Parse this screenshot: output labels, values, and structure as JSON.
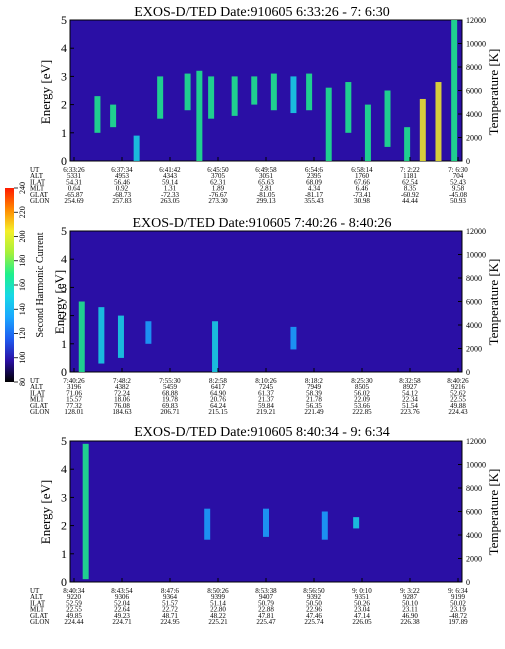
{
  "colors": {
    "background": "#2a0fa5",
    "colorbar_stops": [
      "#000000",
      "#2a0fa5",
      "#1e5cf0",
      "#1aa7ff",
      "#17d8e6",
      "#1ef08c",
      "#a6f03a",
      "#f5ef2a",
      "#ff8a00",
      "#ff1a00"
    ]
  },
  "colorbar": {
    "label": "Second Harmonic Current",
    "ticks": [
      "80",
      "100",
      "120",
      "140",
      "160",
      "180",
      "200",
      "220",
      "240"
    ]
  },
  "chart_data": [
    {
      "type": "heatmap",
      "title": "EXOS-D/TED   Date:910605   6:33:26 - 7: 6:30",
      "ylabel": "Energy [eV]",
      "y2label": "Temperature [K]",
      "ylim": [
        0,
        5
      ],
      "y2lim": [
        0,
        12000
      ],
      "yticks": [
        "0",
        "1",
        "2",
        "3",
        "4",
        "5"
      ],
      "y2ticks": [
        "0",
        "2000",
        "4000",
        "6000",
        "8000",
        "10000",
        "12000"
      ],
      "row_labels": [
        "UT",
        "ALT",
        "ILAT",
        "MLT",
        "GLAT",
        "GLON"
      ],
      "columns": [
        [
          "6:33:26",
          "5331",
          "54.31",
          "0.64",
          "-65.87",
          "254.69"
        ],
        [
          "6:37:34",
          "4953",
          "56.46",
          "0.92",
          "-68.73",
          "257.83"
        ],
        [
          "6:41:42",
          "4343",
          "59.14",
          "1.31",
          "-72.33",
          "263.05"
        ],
        [
          "6:45:50",
          "3705",
          "62.31",
          "1.89",
          "-76.67",
          "273.30"
        ],
        [
          "6:49:58",
          "3051",
          "65.63",
          "2.81",
          "-81.05",
          "299.13"
        ],
        [
          "6:54:6",
          "2395",
          "68.09",
          "4.34",
          "-81.17",
          "355.43"
        ],
        [
          "6:58:14",
          "1760",
          "67.66",
          "6.46",
          "-73.41",
          "30.98"
        ],
        [
          "7: 2:22",
          "1181",
          "62.54",
          "8.35",
          "-60.92",
          "44.44"
        ],
        [
          "7: 6:30",
          "704",
          "52.43",
          "9.58",
          "-45.08",
          "50.93"
        ]
      ],
      "features": [
        {
          "t": 0.07,
          "e0": 1.0,
          "e1": 2.3,
          "level": 0.55
        },
        {
          "t": 0.11,
          "e0": 1.2,
          "e1": 2.0,
          "level": 0.5
        },
        {
          "t": 0.17,
          "e0": 0.0,
          "e1": 0.9,
          "level": 0.45
        },
        {
          "t": 0.23,
          "e0": 1.5,
          "e1": 3.0,
          "level": 0.5
        },
        {
          "t": 0.3,
          "e0": 1.8,
          "e1": 3.1,
          "level": 0.55
        },
        {
          "t": 0.33,
          "e0": 0.0,
          "e1": 3.2,
          "level": 0.6
        },
        {
          "t": 0.36,
          "e0": 1.5,
          "e1": 3.0,
          "level": 0.55
        },
        {
          "t": 0.42,
          "e0": 1.6,
          "e1": 3.0,
          "level": 0.5
        },
        {
          "t": 0.47,
          "e0": 2.0,
          "e1": 3.0,
          "level": 0.5
        },
        {
          "t": 0.52,
          "e0": 1.8,
          "e1": 3.1,
          "level": 0.5
        },
        {
          "t": 0.57,
          "e0": 1.7,
          "e1": 3.0,
          "level": 0.45
        },
        {
          "t": 0.61,
          "e0": 1.8,
          "e1": 3.1,
          "level": 0.5
        },
        {
          "t": 0.66,
          "e0": 0.0,
          "e1": 2.6,
          "level": 0.5
        },
        {
          "t": 0.71,
          "e0": 1.0,
          "e1": 2.8,
          "level": 0.5
        },
        {
          "t": 0.76,
          "e0": 0.0,
          "e1": 2.0,
          "level": 0.55
        },
        {
          "t": 0.81,
          "e0": 0.5,
          "e1": 2.5,
          "level": 0.5
        },
        {
          "t": 0.86,
          "e0": 0.0,
          "e1": 1.2,
          "level": 0.6
        },
        {
          "t": 0.9,
          "e0": 0.0,
          "e1": 2.2,
          "level": 0.75
        },
        {
          "t": 0.94,
          "e0": 0.0,
          "e1": 2.8,
          "level": 0.8
        },
        {
          "t": 0.98,
          "e0": 0.0,
          "e1": 5.0,
          "level": 0.6
        }
      ]
    },
    {
      "type": "heatmap",
      "title": "EXOS-D/TED   Date:910605   7:40:26 - 8:40:26",
      "ylabel": "Energy [eV]",
      "y2label": "Temperature [K]",
      "ylim": [
        0,
        5
      ],
      "y2lim": [
        0,
        12000
      ],
      "yticks": [
        "0",
        "1",
        "2",
        "3",
        "4",
        "5"
      ],
      "y2ticks": [
        "0",
        "2000",
        "4000",
        "6000",
        "8000",
        "10000",
        "12000"
      ],
      "row_labels": [
        "UT",
        "ALT",
        "ILAT",
        "MLT",
        "GLAT",
        "GLON"
      ],
      "columns": [
        [
          "7:40:26",
          "3196",
          "71.06",
          "15.57",
          "77.32",
          "128.01"
        ],
        [
          "7:48:2",
          "4382",
          "72.24",
          "18.06",
          "76.08",
          "184.63"
        ],
        [
          "7:55:30",
          "5459",
          "68.88",
          "19.78",
          "69.83",
          "206.71"
        ],
        [
          "8:2:58",
          "6417",
          "64.90",
          "20.76",
          "64.24",
          "215.15"
        ],
        [
          "8:10:26",
          "7245",
          "61.37",
          "21.37",
          "59.84",
          "219.21"
        ],
        [
          "8:18:2",
          "7949",
          "58.39",
          "21.78",
          "56.35",
          "221.49"
        ],
        [
          "8:25:30",
          "8505",
          "56.02",
          "22.09",
          "53.66",
          "222.85"
        ],
        [
          "8:32:58",
          "8927",
          "54.12",
          "22.34",
          "51.54",
          "223.76"
        ],
        [
          "8:40:26",
          "9216",
          "52.62",
          "22.55",
          "49.88",
          "224.43"
        ]
      ],
      "features": [
        {
          "t": 0.03,
          "e0": 0.0,
          "e1": 2.5,
          "level": 0.5
        },
        {
          "t": 0.08,
          "e0": 0.3,
          "e1": 2.3,
          "level": 0.45
        },
        {
          "t": 0.13,
          "e0": 0.5,
          "e1": 2.0,
          "level": 0.4
        },
        {
          "t": 0.2,
          "e0": 1.0,
          "e1": 1.8,
          "level": 0.35
        },
        {
          "t": 0.37,
          "e0": 0.0,
          "e1": 1.8,
          "level": 0.4
        },
        {
          "t": 0.57,
          "e0": 0.8,
          "e1": 1.6,
          "level": 0.35
        }
      ]
    },
    {
      "type": "heatmap",
      "title": "EXOS-D/TED   Date:910605   8:40:34 - 9: 6:34",
      "ylabel": "Energy [eV]",
      "y2label": "Temperature [K]",
      "ylim": [
        0,
        5
      ],
      "y2lim": [
        0,
        12000
      ],
      "yticks": [
        "0",
        "1",
        "2",
        "3",
        "4",
        "5"
      ],
      "y2ticks": [
        "0",
        "2000",
        "4000",
        "6000",
        "8000",
        "10000",
        "12000"
      ],
      "row_labels": [
        "UT",
        "ALT",
        "ILAT",
        "MLT",
        "GLAT",
        "GLON"
      ],
      "columns": [
        [
          "8:40:34",
          "9220",
          "52.59",
          "22.55",
          "49.85",
          "224.44"
        ],
        [
          "8:43:54",
          "9306",
          "52.04",
          "22.64",
          "49.23",
          "224.71"
        ],
        [
          "8:47:6",
          "9364",
          "51.57",
          "22.72",
          "48.71",
          "224.95"
        ],
        [
          "8:50:26",
          "9399",
          "51.14",
          "22.80",
          "48.22",
          "225.21"
        ],
        [
          "8:53:38",
          "9407",
          "50.79",
          "22.88",
          "47.81",
          "225.47"
        ],
        [
          "8:56:50",
          "9392",
          "50.50",
          "22.96",
          "47.46",
          "225.74"
        ],
        [
          "9: 0:10",
          "9351",
          "50.26",
          "23.04",
          "47.14",
          "226.05"
        ],
        [
          "9: 3:22",
          "9287",
          "50.10",
          "23.11",
          "46.90",
          "226.38"
        ],
        [
          "9: 6:34",
          "9199",
          "50.02",
          "23.19",
          "-48.72",
          "197.89"
        ]
      ],
      "features": [
        {
          "t": 0.04,
          "e0": 0.1,
          "e1": 4.9,
          "level": 0.55
        },
        {
          "t": 0.35,
          "e0": 1.5,
          "e1": 2.6,
          "level": 0.3
        },
        {
          "t": 0.5,
          "e0": 1.6,
          "e1": 2.6,
          "level": 0.3
        },
        {
          "t": 0.65,
          "e0": 1.5,
          "e1": 2.5,
          "level": 0.3
        },
        {
          "t": 0.73,
          "e0": 1.9,
          "e1": 2.3,
          "level": 0.42
        }
      ]
    }
  ]
}
